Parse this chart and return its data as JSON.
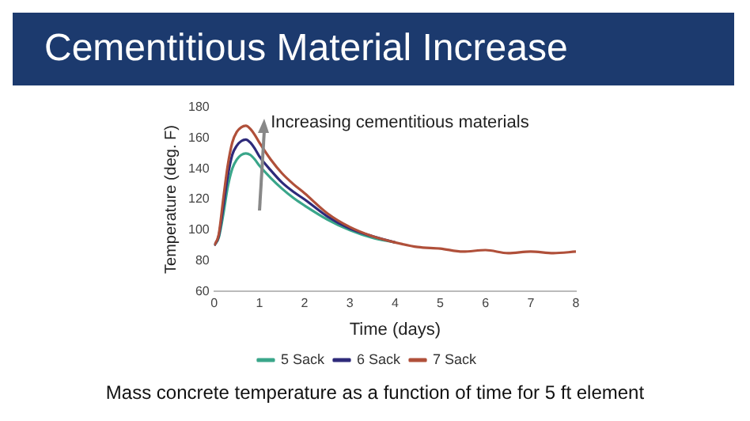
{
  "chart_data": {
    "type": "line",
    "title": "Cementitious Material Increase",
    "xlabel": "Time (days)",
    "ylabel": "Temperature (deg. F)",
    "x": [
      0,
      0.1,
      0.2,
      0.3,
      0.4,
      0.5,
      0.6,
      0.7,
      0.8,
      0.9,
      1,
      1.25,
      1.5,
      1.75,
      2,
      2.5,
      3,
      3.5,
      4,
      4.5,
      5,
      5.5,
      6,
      6.5,
      7,
      7.5,
      8
    ],
    "series": [
      {
        "name": "5 Sack",
        "color": "#3aa68a",
        "values": [
          90,
          95,
          110,
          128,
          140,
          146,
          149,
          150,
          149,
          146,
          142,
          134,
          127,
          121,
          116,
          107,
          100,
          95,
          92,
          null,
          null,
          null,
          null,
          null,
          null,
          null,
          null
        ]
      },
      {
        "name": "6 Sack",
        "color": "#2e2a7a",
        "values": [
          90,
          96,
          115,
          135,
          149,
          155,
          158,
          159,
          157,
          153,
          148,
          139,
          131,
          125,
          120,
          109,
          101,
          96,
          92,
          null,
          null,
          null,
          null,
          null,
          null,
          null,
          null
        ]
      },
      {
        "name": "7 Sack",
        "color": "#b0503a",
        "values": [
          90,
          97,
          120,
          142,
          157,
          164,
          167,
          168,
          166,
          162,
          157,
          146,
          137,
          130,
          124,
          111,
          102,
          96,
          92,
          89,
          88,
          86,
          87,
          85,
          86,
          85,
          86
        ]
      }
    ],
    "xlim": [
      0,
      8
    ],
    "xticks": [
      0,
      1,
      2,
      3,
      4,
      5,
      6,
      7,
      8
    ],
    "ylim": [
      60,
      180
    ],
    "yticks": [
      60,
      80,
      100,
      120,
      140,
      160,
      180
    ],
    "grid": false,
    "legend": "bottom",
    "marker": "none",
    "line_style": "solid",
    "annotations": [
      "Increasing cementitious materials",
      "Mass concrete temperature as a function of time for 5 ft element"
    ]
  }
}
